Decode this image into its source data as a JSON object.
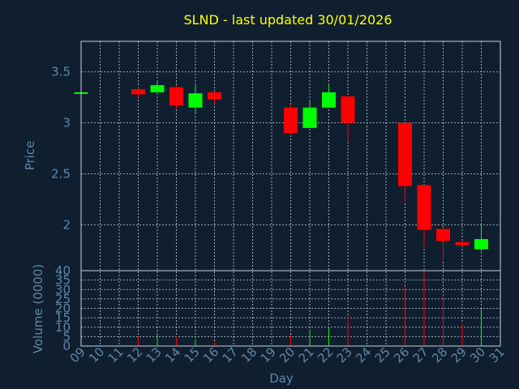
{
  "chart_data": {
    "type": "candlestick",
    "title": "SLND - last updated 30/01/2026",
    "xlabel": "Day",
    "ylabel": "Price",
    "volume_label": "Volume (0000)",
    "x_ticks": [
      "09",
      "10",
      "11",
      "12",
      "13",
      "14",
      "15",
      "16",
      "17",
      "18",
      "19",
      "20",
      "21",
      "22",
      "23",
      "24",
      "25",
      "26",
      "27",
      "28",
      "29",
      "30",
      "31"
    ],
    "price_ticks": [
      "2",
      "2.5",
      "3",
      "3.5"
    ],
    "volume_ticks": [
      "0",
      "5",
      "10",
      "15",
      "20",
      "25",
      "30",
      "35",
      "40"
    ],
    "price_range": [
      1.55,
      3.8
    ],
    "volume_range": [
      0,
      40
    ],
    "grid": true,
    "colors": {
      "up": "#00ff00",
      "down": "#ff0000",
      "background": "#0f1f30",
      "title": "#ffff00",
      "axis_text": "#5f87a6"
    },
    "candles": [
      {
        "day": "09",
        "open": 3.3,
        "high": 3.3,
        "low": 3.3,
        "close": 3.3,
        "volume": 0
      },
      {
        "day": "12",
        "open": 3.33,
        "high": 3.35,
        "low": 3.25,
        "close": 3.28,
        "volume": 5
      },
      {
        "day": "13",
        "open": 3.3,
        "high": 3.41,
        "low": 3.3,
        "close": 3.37,
        "volume": 6
      },
      {
        "day": "14",
        "open": 3.35,
        "high": 3.37,
        "low": 3.14,
        "close": 3.17,
        "volume": 5
      },
      {
        "day": "15",
        "open": 3.15,
        "high": 3.37,
        "low": 3.1,
        "close": 3.29,
        "volume": 3
      },
      {
        "day": "16",
        "open": 3.3,
        "high": 3.31,
        "low": 3.19,
        "close": 3.23,
        "volume": 2
      },
      {
        "day": "20",
        "open": 3.15,
        "high": 3.18,
        "low": 2.89,
        "close": 2.9,
        "volume": 6
      },
      {
        "day": "21",
        "open": 2.95,
        "high": 3.22,
        "low": 2.95,
        "close": 3.15,
        "volume": 8
      },
      {
        "day": "22",
        "open": 3.15,
        "high": 3.37,
        "low": 3.15,
        "close": 3.3,
        "volume": 10
      },
      {
        "day": "23",
        "open": 3.26,
        "high": 3.26,
        "low": 2.82,
        "close": 3.0,
        "volume": 16
      },
      {
        "day": "26",
        "open": 3.0,
        "high": 3.0,
        "low": 2.22,
        "close": 2.38,
        "volume": 32
      },
      {
        "day": "27",
        "open": 2.39,
        "high": 2.39,
        "low": 1.78,
        "close": 1.95,
        "volume": 40
      },
      {
        "day": "28",
        "open": 1.96,
        "high": 1.96,
        "low": 1.65,
        "close": 1.84,
        "volume": 27
      },
      {
        "day": "29",
        "open": 1.83,
        "high": 1.84,
        "low": 1.79,
        "close": 1.8,
        "volume": 12
      },
      {
        "day": "30",
        "open": 1.76,
        "high": 2.0,
        "low": 1.74,
        "close": 1.86,
        "volume": 20
      }
    ]
  }
}
